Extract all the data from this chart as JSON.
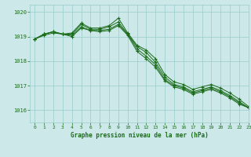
{
  "title": "Graphe pression niveau de la mer (hPa)",
  "bg_color": "#cce8e8",
  "grid_color": "#99cccc",
  "line_color": "#1a6b1a",
  "xlim": [
    -0.5,
    23
  ],
  "ylim": [
    1015.5,
    1020.3
  ],
  "yticks": [
    1016,
    1017,
    1018,
    1019,
    1020
  ],
  "xticks": [
    0,
    1,
    2,
    3,
    4,
    5,
    6,
    7,
    8,
    9,
    10,
    11,
    12,
    13,
    14,
    15,
    16,
    17,
    18,
    19,
    20,
    21,
    22,
    23
  ],
  "series": [
    [
      1018.9,
      1019.05,
      1019.15,
      1019.1,
      1019.0,
      1019.35,
      1019.25,
      1019.2,
      1019.25,
      1019.45,
      1019.05,
      1018.4,
      1018.1,
      1017.75,
      1017.2,
      1016.95,
      1016.85,
      1016.65,
      1016.75,
      1016.85,
      1016.7,
      1016.5,
      1016.25,
      1016.1
    ],
    [
      1018.9,
      1019.1,
      1019.2,
      1019.1,
      1019.05,
      1019.4,
      1019.25,
      1019.25,
      1019.3,
      1019.5,
      1019.1,
      1018.5,
      1018.2,
      1017.85,
      1017.25,
      1017.0,
      1016.9,
      1016.7,
      1016.8,
      1016.9,
      1016.75,
      1016.55,
      1016.3,
      1016.1
    ],
    [
      1018.9,
      1019.1,
      1019.2,
      1019.1,
      1019.1,
      1019.5,
      1019.3,
      1019.3,
      1019.4,
      1019.6,
      1019.1,
      1018.6,
      1018.35,
      1017.95,
      1017.35,
      1017.05,
      1016.95,
      1016.75,
      1016.85,
      1016.95,
      1016.8,
      1016.6,
      1016.35,
      1016.1
    ],
    [
      1018.9,
      1019.1,
      1019.2,
      1019.1,
      1019.15,
      1019.55,
      1019.35,
      1019.35,
      1019.45,
      1019.75,
      1019.15,
      1018.65,
      1018.45,
      1018.1,
      1017.45,
      1017.15,
      1017.05,
      1016.85,
      1016.95,
      1017.05,
      1016.9,
      1016.7,
      1016.45,
      1016.15
    ]
  ]
}
